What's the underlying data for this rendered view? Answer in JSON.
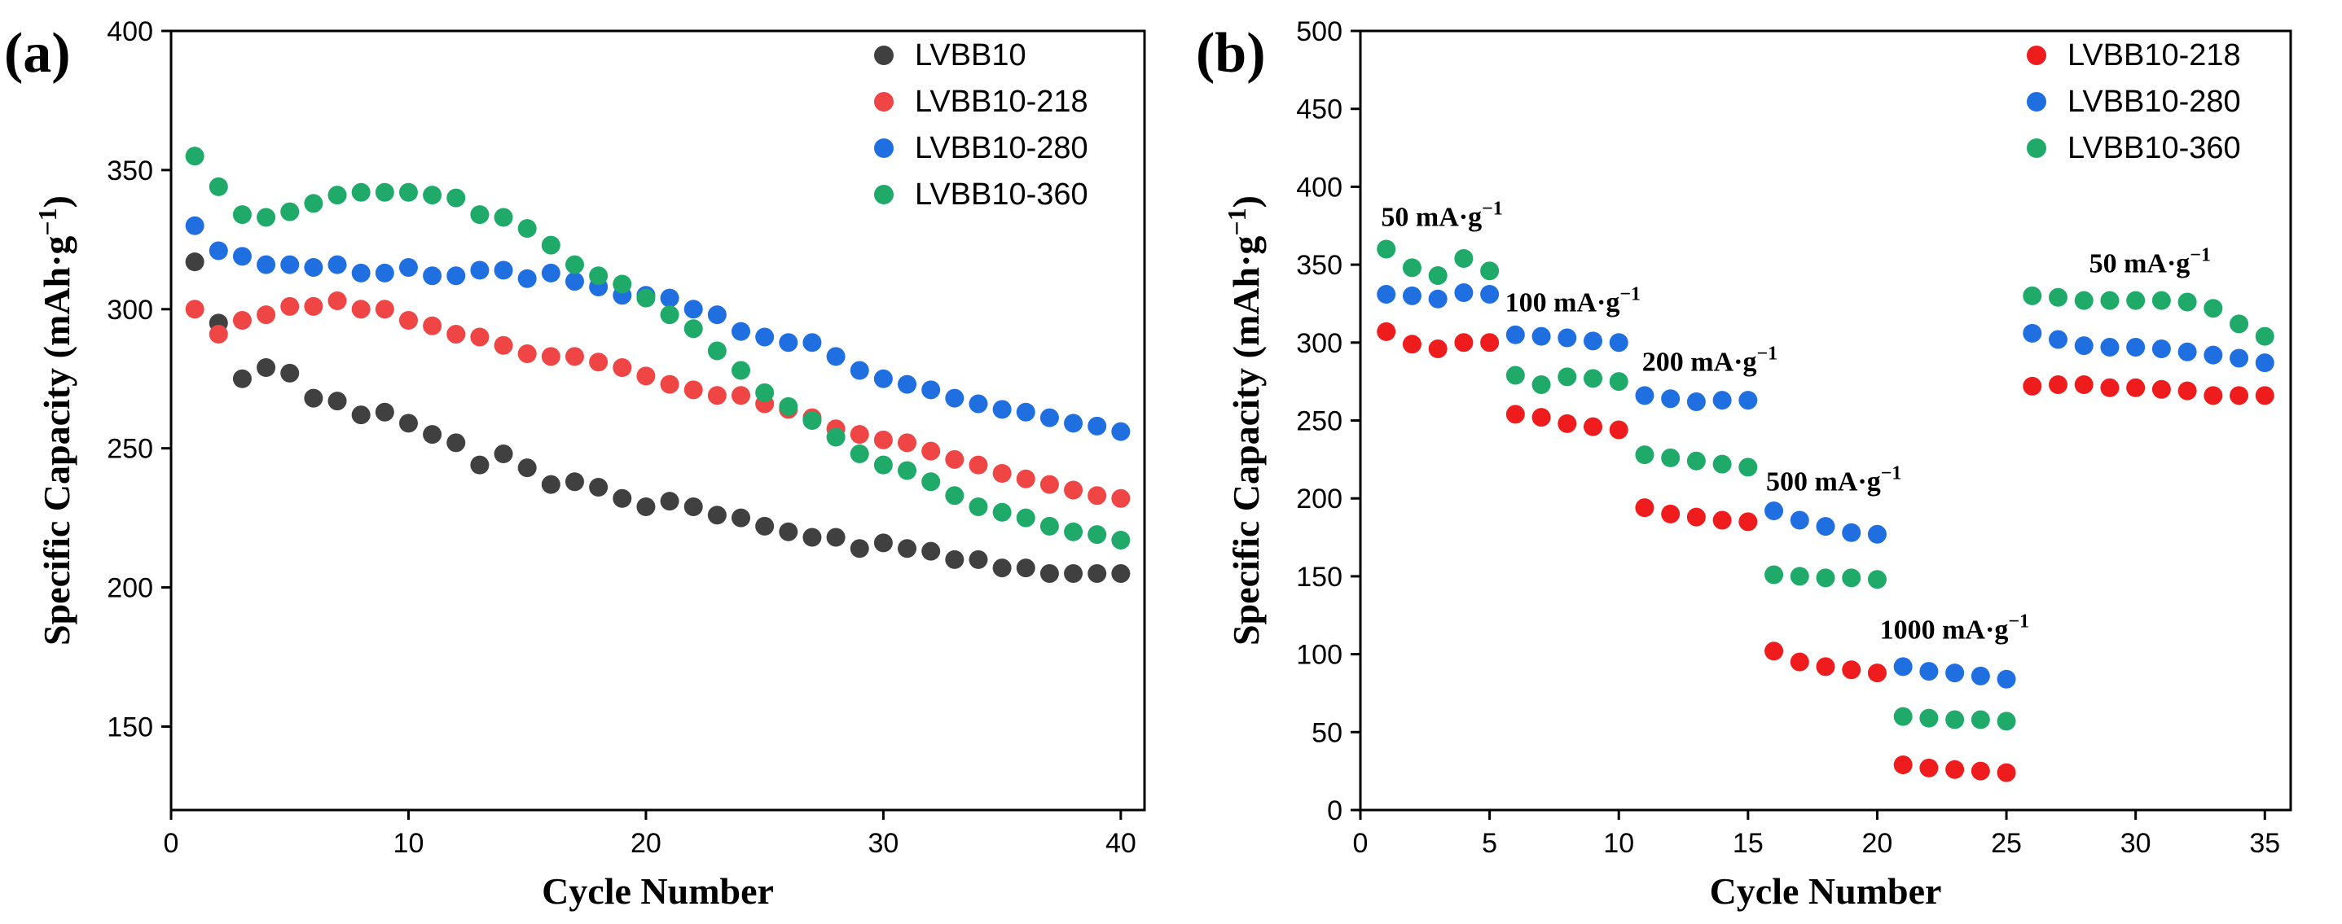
{
  "chart_data": [
    {
      "panel": "(a)",
      "type": "scatter",
      "xlabel": "Cycle Number",
      "ylabel_main": "Specific Capacity (mAh·g",
      "ylabel_sup": "−1",
      "ylabel_close": ")",
      "xlim": [
        0,
        41
      ],
      "ylim": [
        120,
        400
      ],
      "xticks": [
        "0",
        "10",
        "20",
        "30",
        "40"
      ],
      "yticks": [
        "150",
        "200",
        "250",
        "300",
        "350",
        "400"
      ],
      "x": [
        1,
        2,
        3,
        4,
        5,
        6,
        7,
        8,
        9,
        10,
        11,
        12,
        13,
        14,
        15,
        16,
        17,
        18,
        19,
        20,
        21,
        22,
        23,
        24,
        25,
        26,
        27,
        28,
        29,
        30,
        31,
        32,
        33,
        34,
        35,
        36,
        37,
        38,
        39,
        40
      ],
      "series": [
        {
          "name": "LVBB10",
          "color": "#404040",
          "values": [
            317,
            295,
            275,
            279,
            277,
            268,
            267,
            262,
            263,
            259,
            255,
            252,
            244,
            248,
            243,
            237,
            238,
            236,
            232,
            229,
            231,
            229,
            226,
            225,
            222,
            220,
            218,
            218,
            214,
            216,
            214,
            213,
            210,
            210,
            207,
            207,
            205,
            205,
            205,
            205
          ]
        },
        {
          "name": "LVBB10-218",
          "color": "#f04545",
          "values": [
            300,
            291,
            296,
            298,
            301,
            301,
            303,
            300,
            300,
            296,
            294,
            291,
            290,
            287,
            284,
            283,
            283,
            281,
            279,
            276,
            273,
            271,
            269,
            269,
            266,
            264,
            261,
            257,
            255,
            253,
            252,
            249,
            246,
            244,
            241,
            239,
            237,
            235,
            233,
            232
          ]
        },
        {
          "name": "LVBB10-280",
          "color": "#1f6fe0",
          "values": [
            330,
            321,
            319,
            316,
            316,
            315,
            316,
            313,
            313,
            315,
            312,
            312,
            314,
            314,
            311,
            313,
            310,
            308,
            305,
            305,
            304,
            300,
            298,
            292,
            290,
            288,
            288,
            283,
            278,
            275,
            273,
            271,
            268,
            266,
            264,
            263,
            261,
            259,
            258,
            256
          ]
        },
        {
          "name": "LVBB10-360",
          "color": "#1faa6a",
          "values": [
            355,
            344,
            334,
            333,
            335,
            338,
            341,
            342,
            342,
            342,
            341,
            340,
            334,
            333,
            329,
            323,
            316,
            312,
            309,
            304,
            298,
            293,
            285,
            278,
            270,
            265,
            260,
            254,
            248,
            244,
            242,
            238,
            233,
            229,
            227,
            225,
            222,
            220,
            219,
            217
          ]
        }
      ],
      "legend": {
        "position": "top-right"
      }
    },
    {
      "panel": "(b)",
      "type": "scatter",
      "xlabel": "Cycle Number",
      "ylabel_main": "Specific Capacity (mAh·g",
      "ylabel_sup": "−1",
      "ylabel_close": ")",
      "xlim": [
        0,
        36
      ],
      "ylim": [
        0,
        500
      ],
      "xticks": [
        "0",
        "5",
        "10",
        "15",
        "20",
        "25",
        "30",
        "35"
      ],
      "yticks": [
        "0",
        "50",
        "100",
        "150",
        "200",
        "250",
        "300",
        "350",
        "400",
        "450",
        "500"
      ],
      "x": [
        1,
        2,
        3,
        4,
        5,
        6,
        7,
        8,
        9,
        10,
        11,
        12,
        13,
        14,
        15,
        16,
        17,
        18,
        19,
        20,
        21,
        22,
        23,
        24,
        25,
        26,
        27,
        28,
        29,
        30,
        31,
        32,
        33,
        34,
        35
      ],
      "series": [
        {
          "name": "LVBB10-218",
          "color": "#ee1c1c",
          "values": [
            307,
            299,
            296,
            300,
            300,
            254,
            252,
            248,
            246,
            244,
            194,
            190,
            188,
            186,
            185,
            102,
            95,
            92,
            90,
            88,
            29,
            27,
            26,
            25,
            24,
            272,
            273,
            273,
            271,
            271,
            270,
            269,
            266,
            266,
            266
          ]
        },
        {
          "name": "LVBB10-280",
          "color": "#1f6fe0",
          "values": [
            331,
            330,
            328,
            332,
            331,
            305,
            304,
            303,
            301,
            300,
            266,
            264,
            262,
            263,
            263,
            192,
            186,
            182,
            178,
            177,
            92,
            89,
            88,
            86,
            84,
            306,
            302,
            298,
            297,
            297,
            296,
            294,
            292,
            290,
            287
          ]
        },
        {
          "name": "LVBB10-360",
          "color": "#1faa6a",
          "values": [
            360,
            348,
            343,
            354,
            346,
            279,
            273,
            278,
            277,
            275,
            228,
            226,
            224,
            222,
            220,
            151,
            150,
            149,
            149,
            148,
            60,
            59,
            58,
            58,
            57,
            330,
            329,
            327,
            327,
            327,
            327,
            326,
            322,
            312,
            304
          ]
        }
      ],
      "annotations": [
        {
          "text": "50 mA·g",
          "sup": "−1",
          "x": 0.8,
          "y": 375
        },
        {
          "text": "100 mA·g",
          "sup": "−1",
          "x": 5.6,
          "y": 320
        },
        {
          "text": "200 mA·g",
          "sup": "−1",
          "x": 10.9,
          "y": 282
        },
        {
          "text": "500 mA·g",
          "sup": "−1",
          "x": 15.7,
          "y": 205
        },
        {
          "text": "1000 mA·g",
          "sup": "−1",
          "x": 20.1,
          "y": 110
        },
        {
          "text": "50 mA·g",
          "sup": "−1",
          "x": 28.2,
          "y": 345
        }
      ],
      "legend": {
        "position": "top-right"
      }
    }
  ]
}
